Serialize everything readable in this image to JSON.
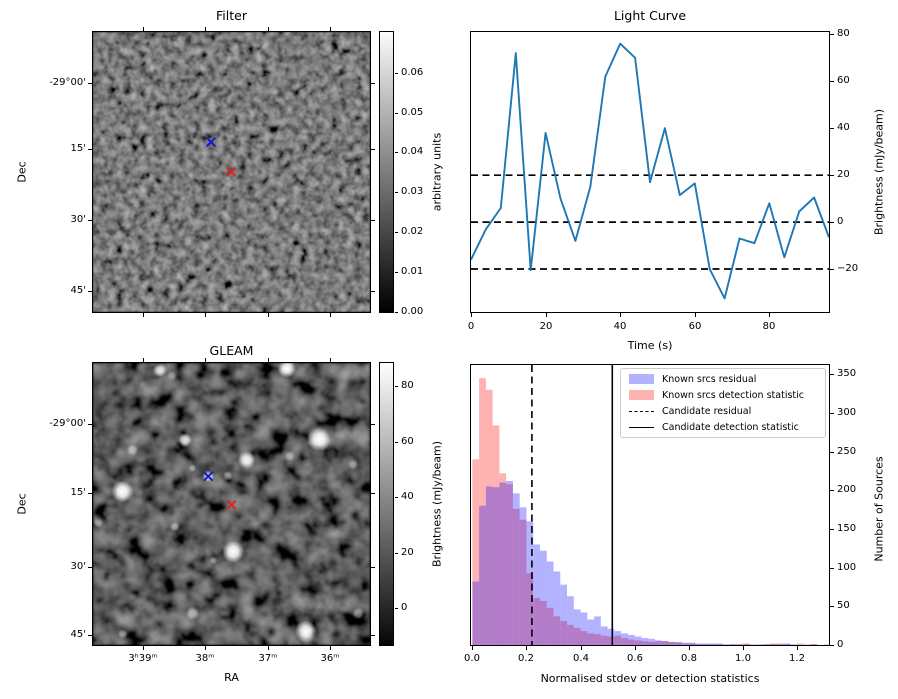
{
  "figure": {
    "description": "2x2 matplotlib figure: transient candidate diagnostic plots"
  },
  "chart_data": [
    {
      "id": "filter",
      "type": "heatmap",
      "title": "Filter",
      "ylabel": "Dec",
      "yticks": [
        "-29°00'",
        "15'",
        "30'",
        "45'"
      ],
      "colorbar": {
        "label": "arbitrary units",
        "ticks": [
          0.0,
          0.01,
          0.02,
          0.03,
          0.04,
          0.05,
          0.06
        ],
        "range": [
          0,
          0.07
        ]
      },
      "markers": [
        {
          "shape": "x",
          "color": "#1414dc",
          "rx": 0.426,
          "ry": 0.393
        },
        {
          "shape": "x",
          "color": "#e32020",
          "rx": 0.498,
          "ry": 0.5
        }
      ],
      "image": "grayscale random-noise filter map"
    },
    {
      "id": "light_curve",
      "type": "line",
      "title": "Light Curve",
      "xlabel": "Time (s)",
      "ylabel_right": "Brightness (mJy/beam)",
      "line_color": "#1f77b4",
      "x": [
        0,
        4,
        8,
        12,
        16,
        20,
        24,
        28,
        32,
        36,
        40,
        44,
        48,
        52,
        56,
        60,
        64,
        68,
        72,
        76,
        80,
        84,
        88,
        92,
        96
      ],
      "y": [
        -16,
        -3,
        6,
        72,
        -20.5,
        38,
        10,
        -8,
        15,
        62,
        76,
        70,
        17,
        40,
        11.5,
        16.5,
        -20,
        -32.5,
        -7,
        -9,
        8,
        -15,
        4.5,
        10.5,
        -6.5
      ],
      "hlines": [
        {
          "y": 20,
          "style": "dashed"
        },
        {
          "y": 0,
          "style": "dashed"
        },
        {
          "y": -20,
          "style": "dashed"
        }
      ],
      "xticks": [
        0,
        20,
        40,
        60,
        80
      ],
      "yticks": [
        -20,
        0,
        20,
        40,
        60,
        80
      ],
      "xlim": [
        0,
        96
      ],
      "ylim": [
        -38.3,
        81
      ]
    },
    {
      "id": "gleam",
      "type": "heatmap",
      "title": "GLEAM",
      "xlabel": "RA",
      "ylabel": "Dec",
      "xticks": [
        "3ʰ39ᵐ",
        "38ᵐ",
        "37ᵐ",
        "36ᵐ"
      ],
      "yticks": [
        "-29°00'",
        "15'",
        "30'",
        "45'"
      ],
      "colorbar": {
        "label": "Brightness (mJy/beam)",
        "ticks": [
          0,
          20,
          40,
          60,
          80
        ],
        "range": [
          -13,
          88
        ]
      },
      "markers": [
        {
          "shape": "x",
          "color": "#1414dc",
          "rx": 0.416,
          "ry": 0.402
        },
        {
          "shape": "x",
          "color": "#e32020",
          "rx": 0.5,
          "ry": 0.503
        }
      ],
      "sources": [
        {
          "rx": 0.242,
          "ry": 0.025,
          "r": 7,
          "b": 0.9
        },
        {
          "rx": 0.285,
          "ry": 0.045,
          "r": 5,
          "b": 0.35
        },
        {
          "rx": 0.7,
          "ry": 0.02,
          "r": 9,
          "b": 1.0
        },
        {
          "rx": 0.143,
          "ry": 0.309,
          "r": 6,
          "b": 0.5
        },
        {
          "rx": 0.332,
          "ry": 0.273,
          "r": 7,
          "b": 0.85
        },
        {
          "rx": 0.817,
          "ry": 0.271,
          "r": 12,
          "b": 1.0
        },
        {
          "rx": 0.555,
          "ry": 0.344,
          "r": 9,
          "b": 0.95
        },
        {
          "rx": 0.711,
          "ry": 0.33,
          "r": 5,
          "b": 0.45
        },
        {
          "rx": 0.94,
          "ry": 0.36,
          "r": 5,
          "b": 0.4
        },
        {
          "rx": 0.359,
          "ry": 0.373,
          "r": 4,
          "b": 0.45
        },
        {
          "rx": 0.416,
          "ry": 0.402,
          "r": 6,
          "b": 0.75
        },
        {
          "rx": 0.486,
          "ry": 0.4,
          "r": 5,
          "b": 0.5
        },
        {
          "rx": 0.106,
          "ry": 0.456,
          "r": 11,
          "b": 1.0
        },
        {
          "rx": 0.019,
          "ry": 0.566,
          "r": 5,
          "b": 0.4
        },
        {
          "rx": 0.296,
          "ry": 0.58,
          "r": 5,
          "b": 0.45
        },
        {
          "rx": 0.434,
          "ry": 0.7,
          "r": 4,
          "b": 0.4
        },
        {
          "rx": 0.507,
          "ry": 0.669,
          "r": 11,
          "b": 1.0
        },
        {
          "rx": 0.36,
          "ry": 0.888,
          "r": 7,
          "b": 0.55
        },
        {
          "rx": 0.107,
          "ry": 0.96,
          "r": 5,
          "b": 0.5
        },
        {
          "rx": 0.769,
          "ry": 0.953,
          "r": 11,
          "b": 1.0
        },
        {
          "rx": 0.958,
          "ry": 0.888,
          "r": 6,
          "b": 0.5
        }
      ]
    },
    {
      "id": "histogram",
      "type": "histogram",
      "xlabel": "Normalised stdev or detection statistics",
      "ylabel_right": "Number of Sources",
      "bin_start": 0,
      "bin_width": 0.025,
      "series": [
        {
          "name": "Known srcs detection statistic",
          "color": "rgba(255,0,0,0.30)",
          "values": [
            240,
            345,
            330,
            284,
            222,
            208,
            176,
            162,
            93,
            61,
            57,
            48,
            37,
            31,
            26,
            22,
            18,
            15,
            14,
            12,
            11,
            12,
            9,
            7,
            6,
            5,
            4,
            5,
            5,
            4,
            3,
            2,
            2,
            1,
            1,
            1,
            1,
            0,
            1,
            1,
            2,
            1,
            0,
            1,
            2,
            2,
            1,
            0,
            2,
            1,
            1,
            0,
            1
          ]
        },
        {
          "name": "Known srcs residual",
          "color": "rgba(0,0,255,0.30)",
          "values": [
            82,
            180,
            205,
            204,
            210,
            212,
            196,
            178,
            160,
            130,
            122,
            108,
            95,
            78,
            63,
            46,
            42,
            33,
            37,
            24,
            21,
            18,
            15,
            13,
            11,
            9,
            8,
            6,
            5,
            4,
            4,
            3,
            3,
            2,
            2,
            2,
            2,
            1,
            1,
            1,
            1,
            0,
            1,
            1,
            1,
            1,
            2,
            1,
            0,
            0,
            1,
            0,
            0
          ]
        }
      ],
      "vlines": [
        {
          "name": "Candidate residual",
          "style": "dashed",
          "x": 0.22
        },
        {
          "name": "Candidate detection statistic",
          "style": "solid",
          "x": 0.517
        }
      ],
      "xticks": [
        0.0,
        0.2,
        0.4,
        0.6,
        0.8,
        1.0,
        1.2
      ],
      "yticks": [
        0,
        50,
        100,
        150,
        200,
        250,
        300,
        350
      ],
      "xlim": [
        -0.005,
        1.318
      ],
      "ylim": [
        0,
        362
      ],
      "legend": [
        {
          "label": "Known srcs residual",
          "swatch": "patch",
          "color": "#b2b2ff"
        },
        {
          "label": "Known srcs detection statistic",
          "swatch": "patch",
          "color": "#ffb2b2"
        },
        {
          "label": "Candidate residual",
          "swatch": "dashed-line",
          "color": "#000000"
        },
        {
          "label": "Candidate detection statistic",
          "swatch": "solid-line",
          "color": "#000000"
        }
      ]
    }
  ]
}
